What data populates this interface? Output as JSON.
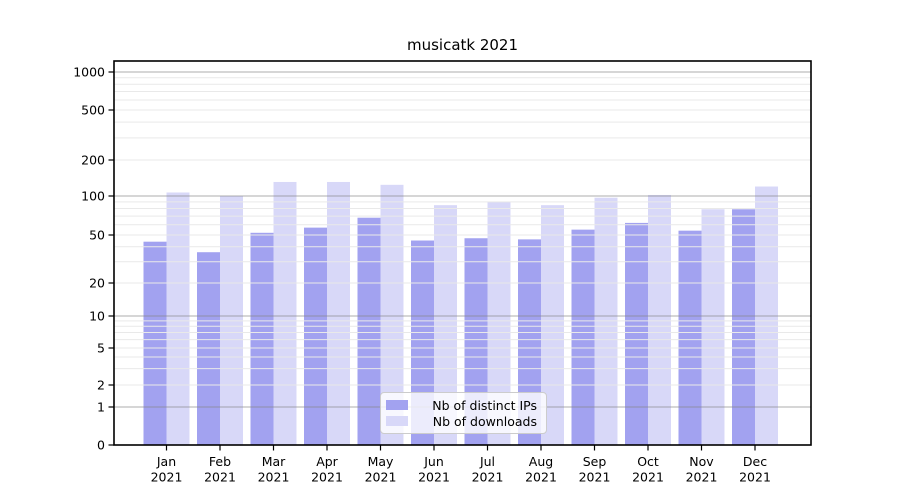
{
  "chart_data": {
    "type": "bar",
    "title": "musicatk 2021",
    "categories": [
      "Jan",
      "Feb",
      "Mar",
      "Apr",
      "May",
      "Jun",
      "Jul",
      "Aug",
      "Sep",
      "Oct",
      "Nov",
      "Dec"
    ],
    "category_year_line": "2021",
    "series": [
      {
        "name": "Nb of distinct IPs",
        "color": "#a2a2f0",
        "values": [
          44,
          36,
          52,
          57,
          68,
          45,
          47,
          46,
          55,
          62,
          54,
          79
        ]
      },
      {
        "name": "Nb of downloads",
        "color": "#d8d8f8",
        "values": [
          107,
          100,
          131,
          131,
          124,
          85,
          90,
          85,
          97,
          102,
          79,
          120
        ]
      }
    ],
    "yscale": "log-with-zero-baseline",
    "ytick_labels": [
      "1000",
      "500",
      "200",
      "100",
      "50",
      "20",
      "10",
      "5",
      "2",
      "1",
      "0"
    ],
    "ytick_values": [
      1000,
      500,
      200,
      100,
      50,
      20,
      10,
      5,
      2,
      1,
      0
    ],
    "ylim_top_label": "1000",
    "grid": true,
    "legend_position": "lower-center",
    "colors": {
      "grid_major": "#828282",
      "grid_minor": "#e9e9e9",
      "axis": "#000000",
      "text": "#000000",
      "background": "#ffffff"
    }
  }
}
